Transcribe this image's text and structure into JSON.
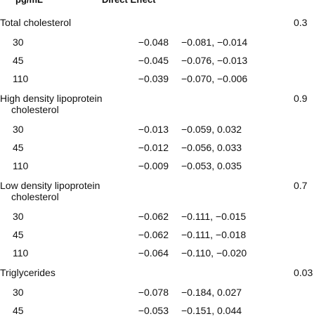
{
  "header": {
    "dose": "pg/mL",
    "effect": "Direct Effect"
  },
  "groups": [
    {
      "name": "Total cholesterol",
      "p": "0.3",
      "rows": [
        {
          "dose": "30",
          "effect": "−0.048",
          "ci": "−0.081, −0.014"
        },
        {
          "dose": "45",
          "effect": "−0.045",
          "ci": "−0.076, −0.013"
        },
        {
          "dose": "110",
          "effect": "−0.039",
          "ci": "−0.070, −0.006"
        }
      ]
    },
    {
      "name": "High density lipoprotein cholesterol",
      "p": "0.9",
      "rows": [
        {
          "dose": "30",
          "effect": "−0.013",
          "ci": "−0.059, 0.032"
        },
        {
          "dose": "45",
          "effect": "−0.012",
          "ci": "−0.056, 0.033"
        },
        {
          "dose": "110",
          "effect": "−0.009",
          "ci": "−0.053, 0.035"
        }
      ]
    },
    {
      "name": "Low density lipoprotein cholesterol",
      "p": "0.7",
      "rows": [
        {
          "dose": "30",
          "effect": "−0.062",
          "ci": "−0.111, −0.015"
        },
        {
          "dose": "45",
          "effect": "−0.062",
          "ci": "−0.111, −0.018"
        },
        {
          "dose": "110",
          "effect": "−0.064",
          "ci": "−0.110, −0.020"
        }
      ]
    },
    {
      "name": "Triglycerides",
      "p": "0.03",
      "rows": [
        {
          "dose": "30",
          "effect": "−0.078",
          "ci": "−0.184, 0.027"
        },
        {
          "dose": "45",
          "effect": "−0.053",
          "ci": "−0.151, 0.044"
        }
      ]
    }
  ]
}
